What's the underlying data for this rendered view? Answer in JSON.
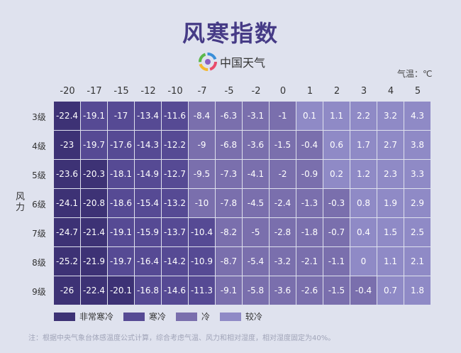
{
  "title": "风寒指数",
  "logo_text": "中国天气",
  "chart_data": {
    "type": "heatmap",
    "title": "风寒指数",
    "x_unit_label": "气温：℃",
    "y_label": "风力",
    "x": [
      "-20",
      "-17",
      "-15",
      "-12",
      "-10",
      "-7",
      "-5",
      "-2",
      "0",
      "1",
      "2",
      "3",
      "4",
      "5"
    ],
    "y": [
      "3级",
      "4级",
      "5级",
      "6级",
      "7级",
      "8级",
      "9级"
    ],
    "values": [
      [
        -22.4,
        -19.1,
        -17,
        -13.4,
        -11.6,
        -8.4,
        -6.3,
        -3.1,
        -1,
        0.1,
        1.1,
        2.2,
        3.2,
        4.3
      ],
      [
        -23,
        -19.7,
        -17.6,
        -14.3,
        -12.2,
        -9,
        -6.8,
        -3.6,
        -1.5,
        -0.4,
        0.6,
        1.7,
        2.7,
        3.8
      ],
      [
        -23.6,
        -20.3,
        -18.1,
        -14.9,
        -12.7,
        -9.5,
        -7.3,
        -4.1,
        -2,
        -0.9,
        0.2,
        1.2,
        2.3,
        3.3
      ],
      [
        -24.1,
        -20.8,
        -18.6,
        -15.4,
        -13.2,
        -10,
        -7.8,
        -4.5,
        -2.4,
        -1.3,
        -0.3,
        0.8,
        1.9,
        2.9
      ],
      [
        -24.7,
        -21.4,
        -19.1,
        -15.9,
        -13.7,
        -10.4,
        -8.2,
        -5,
        -2.8,
        -1.8,
        -0.7,
        0.4,
        1.5,
        2.5
      ],
      [
        -25.2,
        -21.9,
        -19.7,
        -16.4,
        -14.2,
        -10.9,
        -8.7,
        -5.4,
        -3.2,
        -2.1,
        -1.1,
        0,
        1.1,
        2.1
      ],
      [
        -26,
        -22.4,
        -20.1,
        -16.8,
        -14.6,
        -11.3,
        -9.1,
        -5.8,
        -3.6,
        -2.6,
        -1.5,
        -0.4,
        0.7,
        1.8
      ]
    ],
    "legend": [
      {
        "label": "非常寒冷",
        "color": "#3d3275"
      },
      {
        "label": "寒冷",
        "color": "#564a94"
      },
      {
        "label": "冷",
        "color": "#7a6fad"
      },
      {
        "label": "较冷",
        "color": "#8f8ac6"
      }
    ]
  },
  "note": "注：根据中央气象台体感温度公式计算，综合考虑气温、风力和相对湿度，相对湿度固定为40%。"
}
